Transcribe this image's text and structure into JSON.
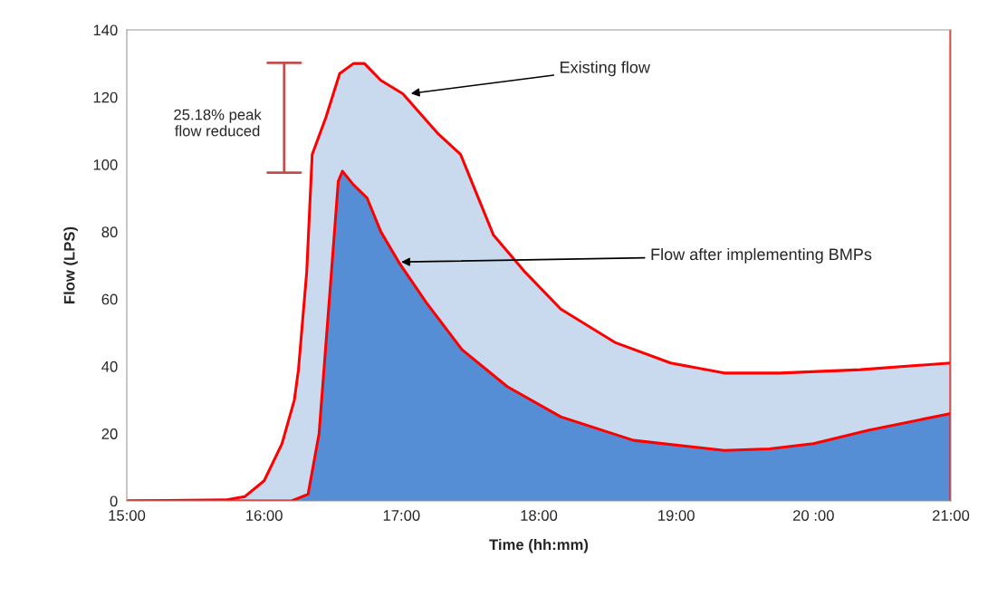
{
  "chart_data": {
    "type": "area",
    "xlabel": "Time (hh:mm)",
    "ylabel": "Flow (LPS)",
    "xlim": [
      15,
      21
    ],
    "ylim": [
      0,
      140
    ],
    "xticks": [
      {
        "value": 15,
        "label": "15:00"
      },
      {
        "value": 16,
        "label": "16:00"
      },
      {
        "value": 17,
        "label": "17:00"
      },
      {
        "value": 18,
        "label": "18:00"
      },
      {
        "value": 19,
        "label": "19:00"
      },
      {
        "value": 20,
        "label": "20 :00"
      },
      {
        "value": 21,
        "label": "21:00"
      }
    ],
    "yticks": [
      0,
      20,
      40,
      60,
      80,
      100,
      120,
      140
    ],
    "grid": false,
    "legend": false,
    "series": [
      {
        "color": "#c9d9ee",
        "x": [
          15.0,
          15.72,
          15.86,
          16.0,
          16.13,
          16.22,
          16.25,
          16.31,
          16.35,
          16.45,
          16.55,
          16.65,
          16.73,
          16.85,
          17.01,
          17.27,
          17.43,
          17.51,
          17.67,
          17.9,
          18.16,
          18.56,
          18.96,
          19.35,
          19.75,
          20.34,
          21.0
        ],
        "values": [
          0,
          0.3,
          1.3,
          6,
          17,
          30,
          39,
          68,
          103,
          114,
          127,
          130,
          130,
          125,
          121,
          109,
          103,
          95,
          79,
          68,
          57,
          47,
          41,
          38,
          38,
          39,
          41
        ]
      },
      {
        "color": "#558ed5",
        "x": [
          15.0,
          16.2,
          16.32,
          16.4,
          16.49,
          16.54,
          16.57,
          16.65,
          16.75,
          16.85,
          16.98,
          17.18,
          17.44,
          17.77,
          18.16,
          18.69,
          19.35,
          19.68,
          20.0,
          20.4,
          21.0
        ],
        "values": [
          0,
          0,
          2,
          20,
          68,
          95,
          98,
          94,
          90,
          80,
          71,
          59,
          45,
          34,
          25,
          18,
          15,
          15.5,
          17,
          21,
          26
        ]
      }
    ],
    "annotations": [
      {
        "text": "Existing flow",
        "x": 17.05,
        "y": 121
      },
      {
        "text": "Flow after implementing BMPs",
        "x": 16.98,
        "y": 71
      },
      "25.18% peak\nflow reduced"
    ]
  }
}
